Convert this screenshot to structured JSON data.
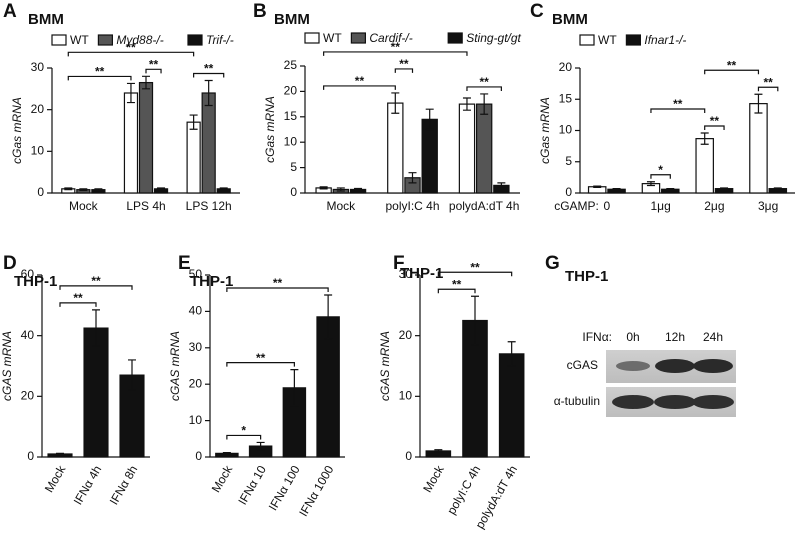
{
  "chart_data": [
    {
      "type": "bar",
      "label": "A",
      "title": "BMM",
      "ylabel": "cGas mRNA",
      "categories": [
        "Mock",
        "LPS 4h",
        "LPS 12h"
      ],
      "series": [
        {
          "name": "WT",
          "color": "#ffffff",
          "italic": false,
          "values": [
            1,
            24,
            17
          ],
          "errors": [
            0.2,
            2.3,
            1.7
          ]
        },
        {
          "name": "Myd88-/-",
          "color": "#555555",
          "italic": true,
          "values": [
            0.8,
            26.5,
            24
          ],
          "errors": [
            0.2,
            1.5,
            3
          ]
        },
        {
          "name": "Trif-/-",
          "color": "#111111",
          "italic": true,
          "values": [
            0.8,
            1,
            1
          ],
          "errors": [
            0.2,
            0.2,
            0.2
          ]
        }
      ],
      "ylim": [
        0,
        30
      ],
      "yticks": [
        0,
        10,
        20,
        30
      ],
      "annotations": [
        {
          "text": "**",
          "from": [
            0,
            0
          ],
          "to": [
            1,
            0
          ]
        },
        {
          "text": "**",
          "from": [
            1,
            1
          ],
          "to": [
            1,
            2
          ]
        },
        {
          "text": "**",
          "from": [
            2,
            0
          ],
          "to": [
            2,
            2
          ]
        },
        {
          "text": "**",
          "from": [
            0,
            0
          ],
          "to": [
            2,
            0
          ]
        }
      ]
    },
    {
      "type": "bar",
      "label": "B",
      "title": "BMM",
      "ylabel": "cGas mRNA",
      "categories": [
        "Mock",
        "polyI:C 4h",
        "polydA:dT 4h"
      ],
      "series": [
        {
          "name": "WT",
          "color": "#ffffff",
          "italic": false,
          "values": [
            1,
            17.7,
            17.5
          ],
          "errors": [
            0.2,
            2,
            1.2
          ]
        },
        {
          "name": "Cardif-/-",
          "color": "#555555",
          "italic": true,
          "values": [
            0.7,
            3,
            17.5
          ],
          "errors": [
            0.3,
            1,
            2
          ]
        },
        {
          "name": "Sting-gt/gt",
          "color": "#111111",
          "italic": true,
          "values": [
            0.7,
            14.5,
            1.5
          ],
          "errors": [
            0.2,
            2,
            0.5
          ]
        }
      ],
      "ylim": [
        0,
        25
      ],
      "yticks": [
        0,
        5,
        10,
        15,
        20,
        25
      ],
      "annotations": [
        {
          "text": "**",
          "from": [
            0,
            0
          ],
          "to": [
            1,
            0
          ]
        },
        {
          "text": "**",
          "from": [
            1,
            0
          ],
          "to": [
            1,
            1
          ]
        },
        {
          "text": "**",
          "from": [
            2,
            0
          ],
          "to": [
            2,
            2
          ]
        },
        {
          "text": "**",
          "from": [
            0,
            0
          ],
          "to": [
            2,
            0
          ]
        }
      ]
    },
    {
      "type": "bar",
      "label": "C",
      "title": "BMM",
      "ylabel": "cGas mRNA",
      "xlabel": "cGAMP:",
      "categories": [
        "0",
        "1μg",
        "2μg",
        "3μg"
      ],
      "series": [
        {
          "name": "WT",
          "color": "#ffffff",
          "italic": false,
          "values": [
            1,
            1.5,
            8.7,
            14.3
          ],
          "errors": [
            0.1,
            0.3,
            0.9,
            1.5
          ]
        },
        {
          "name": "Ifnar1-/-",
          "color": "#111111",
          "italic": true,
          "values": [
            0.6,
            0.6,
            0.7,
            0.7
          ],
          "errors": [
            0.1,
            0.1,
            0.1,
            0.1
          ]
        }
      ],
      "ylim": [
        0,
        20
      ],
      "yticks": [
        0,
        5,
        10,
        15,
        20
      ],
      "annotations": [
        {
          "text": "*",
          "from": [
            1,
            0
          ],
          "to": [
            1,
            1
          ]
        },
        {
          "text": "**",
          "from": [
            2,
            0
          ],
          "to": [
            2,
            1
          ]
        },
        {
          "text": "**",
          "from": [
            1,
            0
          ],
          "to": [
            2,
            0
          ]
        },
        {
          "text": "**",
          "from": [
            3,
            0
          ],
          "to": [
            3,
            1
          ]
        },
        {
          "text": "**",
          "from": [
            2,
            0
          ],
          "to": [
            3,
            0
          ]
        }
      ]
    },
    {
      "type": "bar",
      "label": "D",
      "title": "THP-1",
      "ylabel": "cGAS mRNA",
      "categories": [
        "Mock",
        "IFNα 4h",
        "IFNα 8h"
      ],
      "xtick_rotation": -60,
      "color": "#111111",
      "values": [
        1,
        42.5,
        27
      ],
      "errors": [
        0.2,
        6,
        5
      ],
      "ylim": [
        0,
        60
      ],
      "yticks": [
        0,
        20,
        40,
        60
      ],
      "annotations": [
        {
          "text": "**",
          "from": [
            0,
            0
          ],
          "to": [
            1,
            0
          ]
        },
        {
          "text": "**",
          "from": [
            0,
            0
          ],
          "to": [
            2,
            0
          ]
        }
      ]
    },
    {
      "type": "bar",
      "label": "E",
      "title": "THP-1",
      "ylabel": "cGAS mRNA",
      "categories": [
        "Mock",
        "IFNα 10",
        "IFNα 100",
        "IFNα 1000"
      ],
      "xtick_rotation": -60,
      "color": "#111111",
      "values": [
        1,
        3,
        19,
        38.5
      ],
      "errors": [
        0.2,
        1,
        5,
        6
      ],
      "ylim": [
        0,
        50
      ],
      "yticks": [
        0,
        10,
        20,
        30,
        40,
        50
      ],
      "annotations": [
        {
          "text": "*",
          "from": [
            0,
            0
          ],
          "to": [
            1,
            0
          ]
        },
        {
          "text": "**",
          "from": [
            0,
            0
          ],
          "to": [
            2,
            0
          ]
        },
        {
          "text": "**",
          "from": [
            0,
            0
          ],
          "to": [
            3,
            0
          ]
        }
      ]
    },
    {
      "type": "bar",
      "label": "F",
      "title": "THP-1",
      "ylabel": "cGAS mRNA",
      "categories": [
        "Mock",
        "polyI:C 4h",
        "polydA:dT 4h"
      ],
      "xtick_rotation": -60,
      "color": "#111111",
      "values": [
        1,
        22.5,
        17
      ],
      "errors": [
        0.2,
        4,
        2
      ],
      "ylim": [
        0,
        30
      ],
      "yticks": [
        0,
        10,
        20,
        30
      ],
      "annotations": [
        {
          "text": "**",
          "from": [
            0,
            0
          ],
          "to": [
            1,
            0
          ]
        },
        {
          "text": "**",
          "from": [
            0,
            0
          ],
          "to": [
            2,
            0
          ]
        }
      ]
    }
  ],
  "blot": {
    "label": "G",
    "title": "THP-1",
    "condition_label": "IFNα:",
    "lanes": [
      "0h",
      "12h",
      "24h"
    ],
    "rows": [
      "cGAS",
      "α-tubulin"
    ]
  }
}
